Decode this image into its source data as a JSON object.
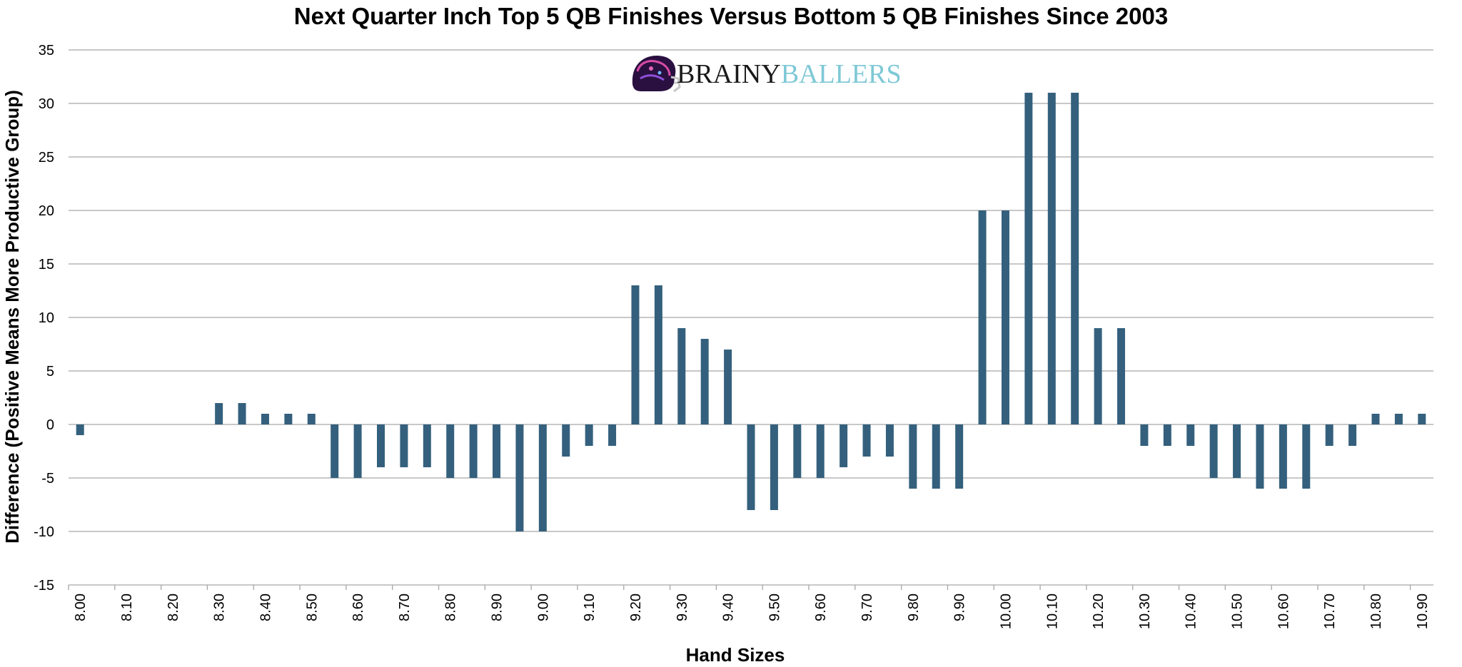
{
  "logo": {
    "part1": "BRAINY",
    "part2": "BALLERS"
  },
  "chart_data": {
    "type": "bar",
    "title": "Next Quarter Inch Top 5 QB Finishes Versus Bottom 5 QB Finishes Since 2003",
    "xlabel": "Hand Sizes",
    "ylabel": "Difference (Positive Means More Productive Group)",
    "ylim": [
      -15,
      35
    ],
    "yticks": [
      35,
      30,
      25,
      20,
      15,
      10,
      5,
      0,
      -5,
      -10,
      -15
    ],
    "grid": true,
    "bar_color": "#34607d",
    "categories": [
      "8.00",
      "8.05",
      "8.10",
      "8.15",
      "8.20",
      "8.25",
      "8.30",
      "8.35",
      "8.40",
      "8.45",
      "8.50",
      "8.55",
      "8.60",
      "8.65",
      "8.70",
      "8.75",
      "8.80",
      "8.85",
      "8.90",
      "8.95",
      "9.00",
      "9.05",
      "9.10",
      "9.15",
      "9.20",
      "9.25",
      "9.30",
      "9.35",
      "9.40",
      "9.45",
      "9.50",
      "9.55",
      "9.60",
      "9.65",
      "9.70",
      "9.75",
      "9.80",
      "9.85",
      "9.90",
      "9.95",
      "10.00",
      "10.05",
      "10.10",
      "10.15",
      "10.20",
      "10.25",
      "10.30",
      "10.35",
      "10.40",
      "10.45",
      "10.50",
      "10.55",
      "10.60",
      "10.65",
      "10.70",
      "10.75",
      "10.80",
      "10.85",
      "10.90"
    ],
    "tick_labels": [
      "8.00",
      "8.10",
      "8.20",
      "8.30",
      "8.40",
      "8.50",
      "8.60",
      "8.70",
      "8.80",
      "8.90",
      "9.00",
      "9.10",
      "9.20",
      "9.30",
      "9.40",
      "9.50",
      "9.60",
      "9.70",
      "9.80",
      "9.90",
      "10.00",
      "10.10",
      "10.20",
      "10.30",
      "10.40",
      "10.50",
      "10.60",
      "10.70",
      "10.80",
      "10.90"
    ],
    "values": [
      -1,
      0,
      0,
      0,
      0,
      0,
      2,
      2,
      1,
      1,
      1,
      -5,
      -5,
      -4,
      -4,
      -4,
      -5,
      -5,
      -5,
      -10,
      -10,
      -3,
      -2,
      -2,
      13,
      13,
      9,
      8,
      7,
      -8,
      -8,
      -5,
      -5,
      -4,
      -3,
      -3,
      -6,
      -6,
      -6,
      20,
      20,
      31,
      31,
      31,
      9,
      9,
      -2,
      -2,
      -2,
      -5,
      -5,
      -6,
      -6,
      -6,
      -2,
      -2,
      1,
      1,
      1
    ]
  }
}
